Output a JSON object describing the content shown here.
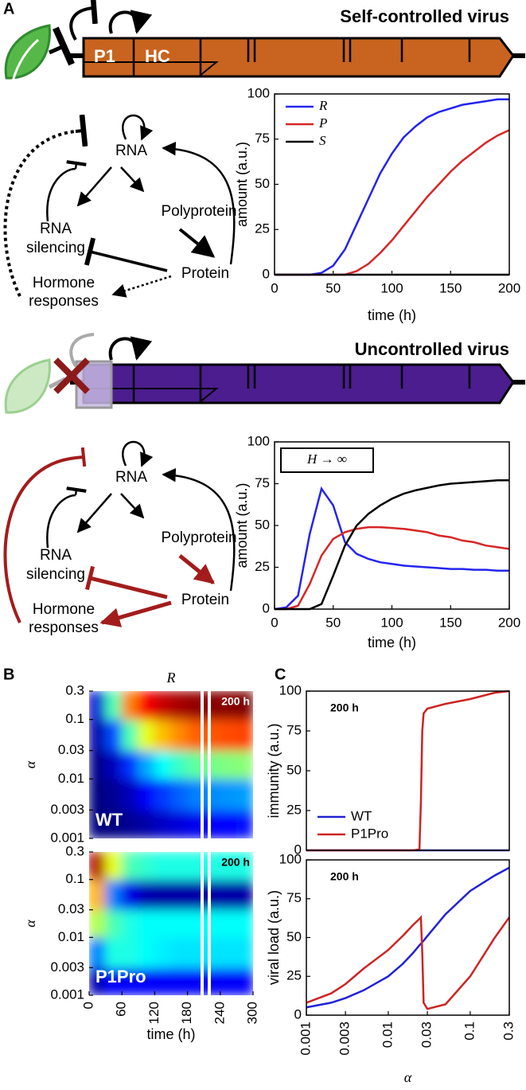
{
  "panels": {
    "a": "A",
    "b": "B",
    "c": "C"
  },
  "gene_top": {
    "title": "Self-controlled virus",
    "labels": [
      "P1",
      "HC"
    ]
  },
  "gene_bottom": {
    "title": "Uncontrolled virus"
  },
  "network_top": {
    "rna": "RNA",
    "polyprotein": "Polyprotein",
    "silencing": [
      "RNA",
      "silencing"
    ],
    "protein": "Protein",
    "hormone": [
      "Hormone",
      "responses"
    ]
  },
  "network_bottom": {
    "rna": "RNA",
    "polyprotein": "Polyprotein",
    "silencing": [
      "RNA",
      "silencing"
    ],
    "protein": "Protein",
    "hormone": [
      "Hormone",
      "responses"
    ]
  },
  "chart_data": [
    {
      "type": "line",
      "xlabel": "time (h)",
      "ylabel": "amount (a.u.)",
      "xlim": [
        0,
        200
      ],
      "xticks": [
        0,
        50,
        100,
        150,
        200
      ],
      "ylim": [
        0,
        100
      ],
      "yticks": [
        0,
        25,
        50,
        75,
        100
      ],
      "x": [
        0,
        10,
        20,
        30,
        40,
        50,
        60,
        70,
        80,
        90,
        100,
        110,
        120,
        130,
        140,
        150,
        160,
        170,
        180,
        190,
        200
      ],
      "legend": "upper left",
      "series": [
        {
          "name": "R",
          "color": "#2424f0",
          "values": [
            0,
            0,
            0,
            0,
            1,
            5,
            14,
            28,
            42,
            56,
            67,
            76,
            82,
            87,
            90,
            92,
            94,
            95,
            96,
            97,
            97
          ]
        },
        {
          "name": "P",
          "color": "#d62626",
          "values": [
            0,
            0,
            0,
            0,
            0,
            0,
            0,
            2,
            6,
            12,
            19,
            27,
            35,
            43,
            50,
            57,
            63,
            68,
            73,
            77,
            80
          ]
        },
        {
          "name": "S",
          "color": "#000000",
          "values": [
            0,
            0,
            0,
            0,
            0,
            0,
            0,
            0,
            0,
            0,
            0,
            0,
            0,
            0,
            0,
            0,
            0,
            0,
            0,
            0,
            0
          ]
        }
      ]
    },
    {
      "type": "line",
      "xlabel": "time (h)",
      "ylabel": "amount (a.u.)",
      "annotation": "H → ∞",
      "xlim": [
        0,
        200
      ],
      "xticks": [
        0,
        50,
        100,
        150,
        200
      ],
      "ylim": [
        0,
        100
      ],
      "yticks": [
        0,
        25,
        50,
        75,
        100
      ],
      "x": [
        0,
        10,
        20,
        30,
        40,
        50,
        60,
        70,
        80,
        90,
        100,
        110,
        120,
        130,
        140,
        150,
        160,
        170,
        180,
        190,
        200
      ],
      "series": [
        {
          "color": "#2424f0",
          "values": [
            0,
            1,
            8,
            45,
            72,
            62,
            40,
            33,
            30,
            28,
            27,
            26,
            25.5,
            25,
            24.5,
            24,
            24,
            23.5,
            23.5,
            23,
            23
          ]
        },
        {
          "color": "#d62626",
          "values": [
            0,
            0,
            2,
            15,
            32,
            42,
            46,
            48,
            49,
            49,
            48.5,
            48,
            47,
            46,
            44,
            43,
            41,
            40,
            38,
            37,
            36
          ]
        },
        {
          "color": "#000000",
          "values": [
            0,
            0,
            0,
            0,
            3,
            20,
            38,
            50,
            57,
            62,
            66,
            69,
            71,
            72.5,
            74,
            75,
            75.5,
            76,
            76.5,
            77,
            77
          ]
        }
      ]
    },
    {
      "type": "heatmap",
      "title": "R",
      "ylabel": "α",
      "annotations": [
        "200 h",
        "WT"
      ],
      "yscale": "log",
      "xlim": [
        0,
        300
      ],
      "ylim": [
        0.001,
        0.3
      ],
      "yticks": [
        0.001,
        0.003,
        0.01,
        0.03,
        0.1,
        0.3
      ],
      "zlim": [
        0,
        100
      ],
      "xbins": [
        0,
        30,
        60,
        90,
        120,
        150,
        180,
        210,
        240,
        270,
        300
      ],
      "ybins": [
        0.001,
        0.003,
        0.01,
        0.03,
        0.1,
        0.3
      ],
      "z": [
        [
          0,
          0,
          2,
          4,
          7,
          9,
          11,
          12,
          13,
          14
        ],
        [
          0,
          2,
          6,
          12,
          18,
          22,
          25,
          26,
          27,
          28
        ],
        [
          1,
          6,
          17,
          29,
          38,
          43,
          47,
          49,
          50,
          51
        ],
        [
          4,
          20,
          45,
          60,
          69,
          74,
          78,
          79,
          80,
          81
        ],
        [
          8,
          45,
          75,
          88,
          93,
          96,
          98,
          99,
          99,
          100
        ]
      ]
    },
    {
      "type": "heatmap",
      "xlabel": "time (h)",
      "ylabel": "α",
      "annotations": [
        "200 h",
        "P1Pro"
      ],
      "yscale": "log",
      "xlim": [
        0,
        300
      ],
      "xticks": [
        0,
        60,
        120,
        180,
        240,
        300
      ],
      "ylim": [
        0.001,
        0.3
      ],
      "yticks": [
        0.001,
        0.003,
        0.01,
        0.03,
        0.1,
        0.3
      ],
      "zlim": [
        0,
        100
      ],
      "xbins": [
        0,
        30,
        60,
        90,
        120,
        150,
        180,
        210,
        240,
        270,
        300
      ],
      "ybins": [
        0.001,
        0.003,
        0.01,
        0.03,
        0.1,
        0.3
      ],
      "z": [
        [
          5,
          12,
          12,
          12,
          12,
          12,
          12,
          12,
          12,
          12
        ],
        [
          25,
          40,
          40,
          38,
          36,
          35,
          35,
          35,
          35,
          35
        ],
        [
          55,
          45,
          40,
          38,
          38,
          38,
          38,
          38,
          38,
          38
        ],
        [
          70,
          25,
          10,
          5,
          4,
          4,
          4,
          4,
          4,
          4
        ],
        [
          95,
          60,
          45,
          42,
          40,
          40,
          40,
          40,
          40,
          40
        ]
      ]
    },
    {
      "type": "line",
      "xscale": "log",
      "ylabel": "immunity (a.u.)",
      "annotation": "200 h",
      "legend": "lower left",
      "xlim": [
        0.001,
        0.3
      ],
      "ylim": [
        0,
        100
      ],
      "yticks": [
        0,
        25,
        50,
        75,
        100
      ],
      "x": [
        0.001,
        0.002,
        0.003,
        0.005,
        0.01,
        0.015,
        0.02,
        0.024,
        0.025,
        0.026,
        0.027,
        0.03,
        0.05,
        0.1,
        0.2,
        0.3
      ],
      "series": [
        {
          "name": "WT",
          "color": "#2222d4",
          "values": [
            0,
            0,
            0,
            0,
            0,
            0,
            0,
            0,
            0,
            0,
            0,
            0,
            0,
            0,
            0,
            0
          ]
        },
        {
          "name": "P1Pro",
          "color": "#cc2424",
          "values": [
            0,
            0,
            0,
            0,
            0,
            0,
            0,
            0.5,
            30,
            75,
            86,
            89,
            92,
            95,
            99,
            100
          ]
        }
      ]
    },
    {
      "type": "line",
      "xscale": "log",
      "xlabel": "α",
      "ylabel": "viral load (a.u.)",
      "annotation": "200 h",
      "xlim": [
        0.001,
        0.3
      ],
      "xticks": [
        0.001,
        0.003,
        0.01,
        0.03,
        0.1,
        0.3
      ],
      "ylim": [
        0,
        100
      ],
      "yticks": [
        0,
        25,
        50,
        75,
        100
      ],
      "x": [
        0.001,
        0.002,
        0.003,
        0.005,
        0.01,
        0.015,
        0.02,
        0.024,
        0.025,
        0.026,
        0.027,
        0.03,
        0.05,
        0.1,
        0.2,
        0.3
      ],
      "series": [
        {
          "color": "#2222d4",
          "values": [
            5,
            8,
            11,
            16,
            25,
            33,
            40,
            45,
            46,
            47,
            48,
            51,
            65,
            80,
            90,
            95
          ]
        },
        {
          "color": "#cc2424",
          "values": [
            8,
            14,
            20,
            30,
            42,
            51,
            58,
            62,
            63,
            40,
            8,
            4,
            7,
            25,
            50,
            63
          ]
        }
      ]
    }
  ]
}
